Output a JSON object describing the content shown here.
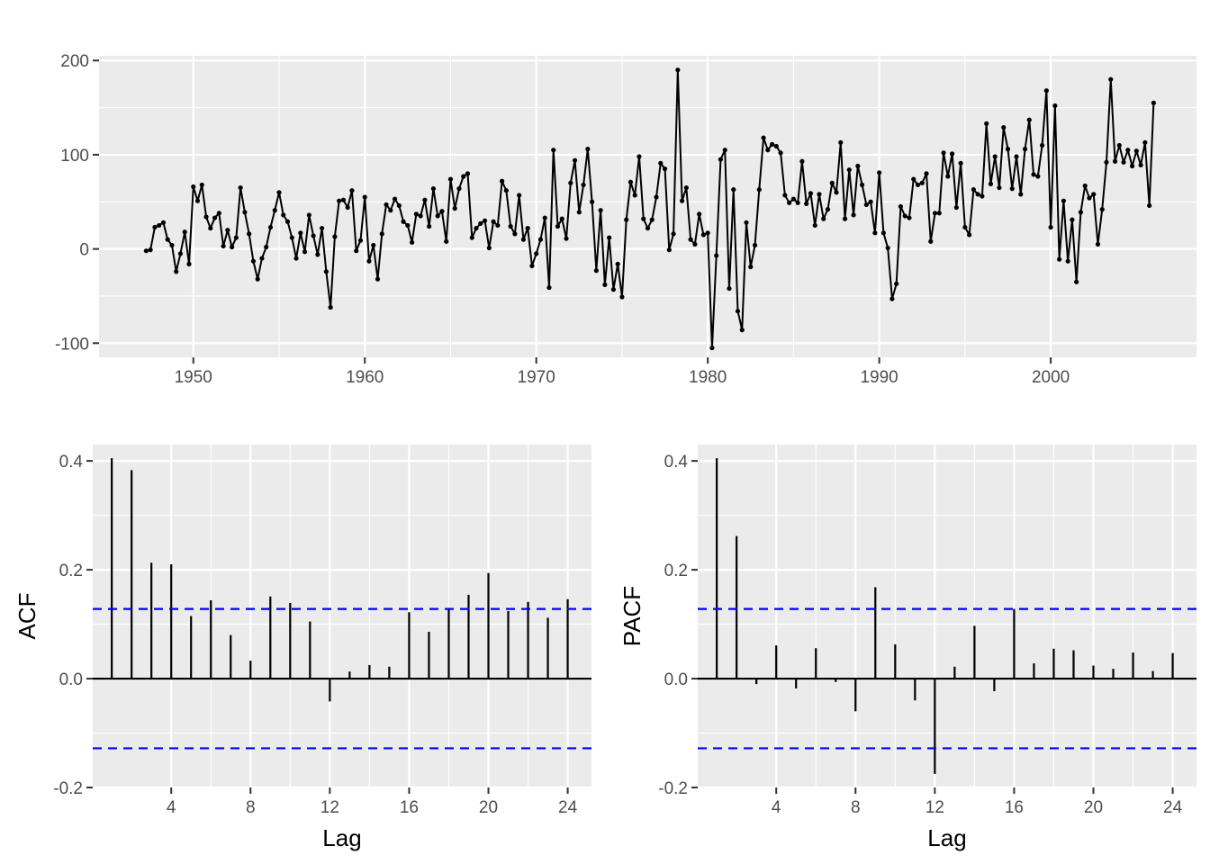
{
  "colors": {
    "panel_bg": "#EBEBEB",
    "grid_major": "#FFFFFF",
    "series": "#000000",
    "confidence_band": "#0000FF",
    "tick_text": "#4D4D4D"
  },
  "chart_data": [
    {
      "type": "line",
      "markers": "points",
      "title": "",
      "xlabel": "",
      "ylabel": "",
      "xlim": [
        1944.5,
        2008.5
      ],
      "ylim": [
        -115,
        205
      ],
      "x_ticks": [
        1950,
        1960,
        1970,
        1980,
        1990,
        2000
      ],
      "x_tick_labels": [
        "1950",
        "1960",
        "1970",
        "1980",
        "1990",
        "2000"
      ],
      "y_ticks": [
        -100,
        0,
        100,
        200
      ],
      "y_tick_labels": [
        "-100",
        "0",
        "100",
        "200"
      ],
      "grid": true,
      "x_start": 1947.25,
      "x_step": 0.25,
      "values": [
        -2,
        -1,
        23,
        25,
        28,
        10,
        4,
        -24,
        -5,
        18,
        -16,
        66,
        51,
        68,
        34,
        22,
        33,
        38,
        3,
        20,
        2,
        12,
        65,
        39,
        16,
        -13,
        -32,
        -10,
        2,
        23,
        41,
        60,
        36,
        29,
        12,
        -10,
        17,
        -3,
        36,
        14,
        -6,
        22,
        -24,
        -62,
        13,
        51,
        52,
        44,
        62,
        -2,
        9,
        55,
        -13,
        4,
        -32,
        16,
        47,
        41,
        53,
        46,
        29,
        25,
        7,
        37,
        35,
        52,
        24,
        64,
        35,
        40,
        8,
        74,
        43,
        64,
        77,
        80,
        12,
        22,
        27,
        30,
        1,
        29,
        25,
        72,
        62,
        24,
        16,
        57,
        10,
        22,
        -18,
        -5,
        10,
        33,
        -41,
        105,
        24,
        32,
        11,
        70,
        94,
        39,
        68,
        106,
        50,
        -23,
        41,
        -38,
        12,
        -43,
        -16,
        -51,
        31,
        71,
        57,
        98,
        32,
        22,
        31,
        55,
        91,
        85,
        -1,
        16,
        190,
        51,
        65,
        10,
        5,
        37,
        15,
        17,
        -105,
        -7,
        95,
        105,
        -42,
        63,
        -66,
        -86,
        28,
        -19,
        4,
        63,
        118,
        105,
        111,
        109,
        102,
        57,
        49,
        53,
        49,
        93,
        48,
        59,
        25,
        58,
        32,
        42,
        70,
        60,
        113,
        32,
        84,
        36,
        88,
        68,
        47,
        50,
        17,
        81,
        17,
        1,
        -53,
        -37,
        45,
        35,
        33,
        74,
        68,
        70,
        80,
        8,
        38,
        38,
        102,
        77,
        101,
        44,
        91,
        23,
        15,
        63,
        58,
        56,
        133,
        69,
        98,
        65,
        129,
        106,
        64,
        98,
        58,
        106,
        137,
        79,
        77,
        110,
        168,
        23,
        152,
        -11,
        51,
        -13,
        31,
        -35,
        39,
        67,
        54,
        58,
        5,
        42,
        92,
        180,
        93,
        110,
        92,
        105,
        88,
        104,
        89,
        113,
        46,
        155
      ]
    },
    {
      "type": "bar",
      "title": "",
      "xlabel": "Lag",
      "ylabel": "ACF",
      "xlim": [
        0.04,
        25.2
      ],
      "ylim": [
        -0.2,
        0.43
      ],
      "x_ticks": [
        4,
        8,
        12,
        16,
        20,
        24
      ],
      "x_tick_labels": [
        "4",
        "8",
        "12",
        "16",
        "20",
        "24"
      ],
      "y_ticks": [
        -0.2,
        0.0,
        0.2,
        0.4
      ],
      "y_tick_labels": [
        "-0.2",
        "0.0",
        "0.2",
        "0.4"
      ],
      "grid": true,
      "lags": [
        1,
        2,
        3,
        4,
        5,
        6,
        7,
        8,
        9,
        10,
        11,
        12,
        13,
        14,
        15,
        16,
        17,
        18,
        19,
        20,
        21,
        22,
        23,
        24
      ],
      "values": [
        0.405,
        0.383,
        0.213,
        0.21,
        0.115,
        0.144,
        0.08,
        0.033,
        0.151,
        0.139,
        0.105,
        -0.042,
        0.013,
        0.025,
        0.022,
        0.122,
        0.086,
        0.13,
        0.154,
        0.194,
        0.124,
        0.141,
        0.112,
        0.146
      ],
      "confidence_bounds": [
        -0.128,
        0.128
      ]
    },
    {
      "type": "bar",
      "title": "",
      "xlabel": "Lag",
      "ylabel": "PACF",
      "xlim": [
        0.04,
        25.2
      ],
      "ylim": [
        -0.2,
        0.43
      ],
      "x_ticks": [
        4,
        8,
        12,
        16,
        20,
        24
      ],
      "x_tick_labels": [
        "4",
        "8",
        "12",
        "16",
        "20",
        "24"
      ],
      "y_ticks": [
        -0.2,
        0.0,
        0.2,
        0.4
      ],
      "y_tick_labels": [
        "-0.2",
        "0.0",
        "0.2",
        "0.4"
      ],
      "grid": true,
      "lags": [
        1,
        2,
        3,
        4,
        5,
        6,
        7,
        8,
        9,
        10,
        11,
        12,
        13,
        14,
        15,
        16,
        17,
        18,
        19,
        20,
        21,
        22,
        23,
        24
      ],
      "values": [
        0.405,
        0.262,
        -0.01,
        0.061,
        -0.018,
        0.056,
        -0.006,
        -0.06,
        0.168,
        0.063,
        -0.04,
        -0.175,
        0.022,
        0.097,
        -0.023,
        0.128,
        0.028,
        0.055,
        0.052,
        0.024,
        0.018,
        0.048,
        0.014,
        0.047
      ],
      "confidence_bounds": [
        -0.128,
        0.128
      ]
    }
  ]
}
